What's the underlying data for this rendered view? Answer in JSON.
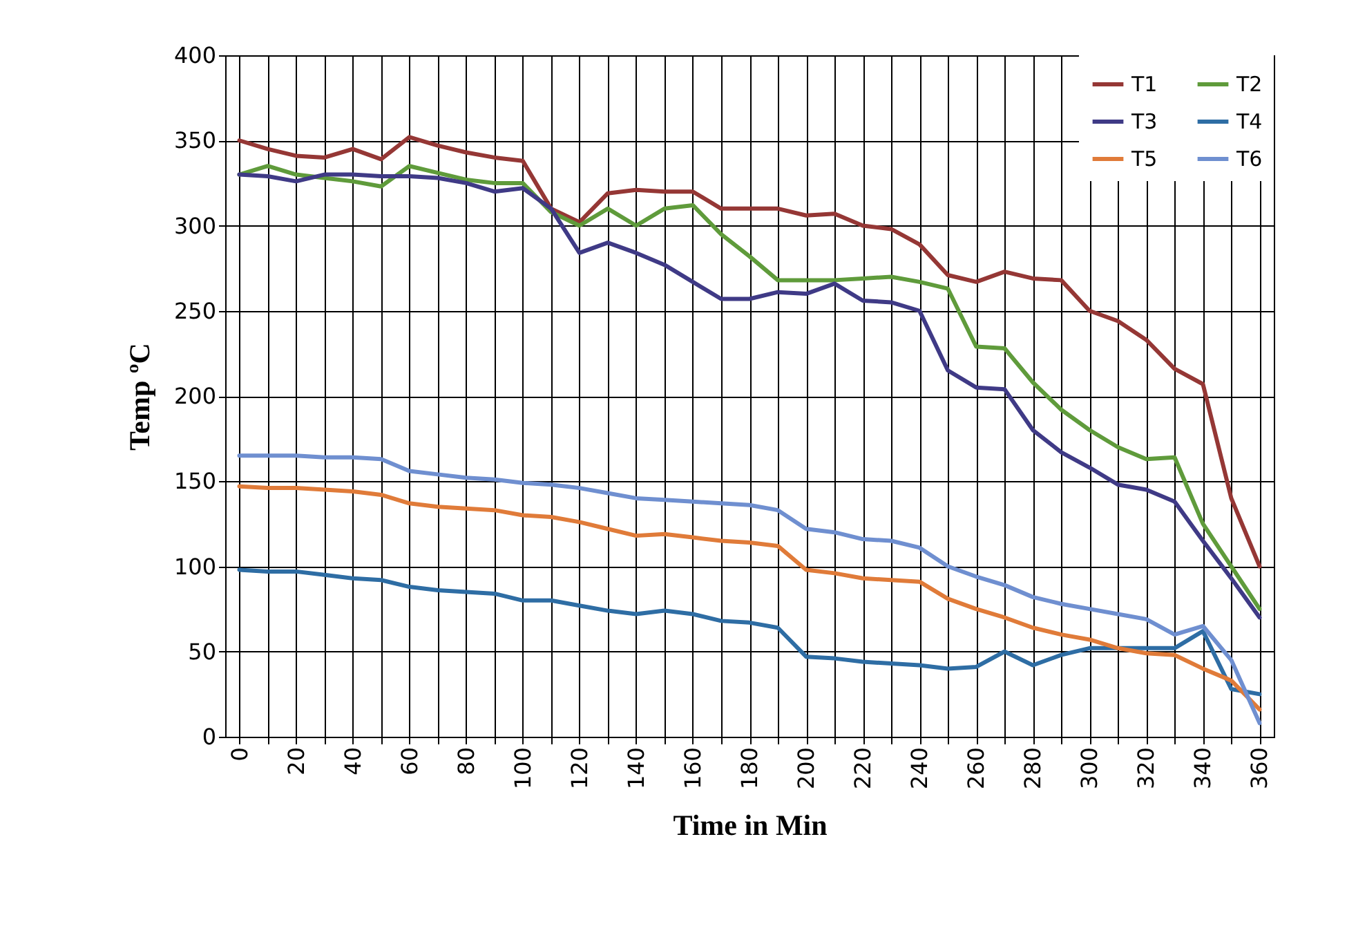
{
  "chart_data": {
    "type": "line",
    "xlabel": "Time in Min",
    "ylabel": "Temp ºC",
    "x": [
      0,
      10,
      20,
      30,
      40,
      50,
      60,
      70,
      80,
      90,
      100,
      110,
      120,
      130,
      140,
      150,
      160,
      170,
      180,
      190,
      200,
      210,
      220,
      230,
      240,
      250,
      260,
      270,
      280,
      290,
      300,
      310,
      320,
      330,
      340,
      350,
      360
    ],
    "xlim": [
      -5,
      365
    ],
    "xticks": [
      0,
      {
        "value": 10,
        "label": null
      },
      20,
      {
        "value": 30,
        "label": null
      },
      40,
      {
        "value": 50,
        "label": null
      },
      60,
      {
        "value": 70,
        "label": null
      },
      80,
      {
        "value": 90,
        "label": null
      },
      100,
      {
        "value": 110,
        "label": null
      },
      120,
      {
        "value": 130,
        "label": null
      },
      140,
      {
        "value": 150,
        "label": null
      },
      160,
      {
        "value": 170,
        "label": null
      },
      180,
      {
        "value": 190,
        "label": null
      },
      200,
      {
        "value": 210,
        "label": null
      },
      220,
      {
        "value": 230,
        "label": null
      },
      240,
      {
        "value": 250,
        "label": null
      },
      260,
      {
        "value": 270,
        "label": null
      },
      280,
      {
        "value": 290,
        "label": null
      },
      300,
      {
        "value": 310,
        "label": null
      },
      320,
      {
        "value": 330,
        "label": null
      },
      340,
      {
        "value": 350,
        "label": null
      },
      360
    ],
    "ylim": [
      0,
      400
    ],
    "yticks": [
      0,
      50,
      100,
      150,
      200,
      250,
      300,
      350,
      400
    ],
    "grid": true,
    "legend": "top right",
    "line_style": "solid",
    "series": [
      {
        "name": "T1",
        "color": "#953735",
        "values": [
          350,
          345,
          341,
          340,
          345,
          339,
          352,
          347,
          343,
          340,
          338,
          310,
          302,
          319,
          321,
          320,
          320,
          310,
          310,
          310,
          306,
          307,
          300,
          298,
          289,
          271,
          267,
          273,
          269,
          268,
          250,
          244,
          233,
          216,
          207,
          140,
          100
        ]
      },
      {
        "name": "T2",
        "color": "#5f9b3b",
        "values": [
          330,
          335,
          330,
          328,
          326,
          323,
          335,
          331,
          327,
          325,
          325,
          308,
          300,
          310,
          300,
          310,
          312,
          295,
          282,
          268,
          268,
          268,
          269,
          270,
          267,
          263,
          229,
          228,
          208,
          192,
          180,
          170,
          163,
          164,
          125,
          100,
          75
        ]
      },
      {
        "name": "T3",
        "color": "#3f3a86",
        "values": [
          330,
          329,
          326,
          330,
          330,
          329,
          329,
          328,
          325,
          320,
          322,
          310,
          284,
          290,
          284,
          277,
          267,
          257,
          257,
          261,
          260,
          266,
          256,
          255,
          250,
          215,
          205,
          204,
          180,
          167,
          158,
          148,
          145,
          138,
          115,
          93,
          70
        ]
      },
      {
        "name": "T4",
        "color": "#2e6da4",
        "values": [
          98,
          97,
          97,
          95,
          93,
          92,
          88,
          86,
          85,
          84,
          80,
          80,
          77,
          74,
          72,
          74,
          72,
          68,
          67,
          64,
          47,
          46,
          44,
          43,
          42,
          40,
          41,
          50,
          42,
          48,
          52,
          52,
          52,
          52,
          62,
          28,
          25
        ]
      },
      {
        "name": "T5",
        "color": "#e07b39",
        "values": [
          147,
          146,
          146,
          145,
          144,
          142,
          137,
          135,
          134,
          133,
          130,
          129,
          126,
          122,
          118,
          119,
          117,
          115,
          114,
          112,
          98,
          96,
          93,
          92,
          91,
          81,
          75,
          70,
          64,
          60,
          57,
          52,
          49,
          48,
          40,
          33,
          16
        ]
      },
      {
        "name": "T6",
        "color": "#6f8fd0",
        "values": [
          165,
          165,
          165,
          164,
          164,
          163,
          156,
          154,
          152,
          151,
          149,
          148,
          146,
          143,
          140,
          139,
          138,
          137,
          136,
          133,
          122,
          120,
          116,
          115,
          111,
          100,
          94,
          89,
          82,
          78,
          75,
          72,
          69,
          60,
          65,
          45,
          8
        ]
      }
    ]
  }
}
